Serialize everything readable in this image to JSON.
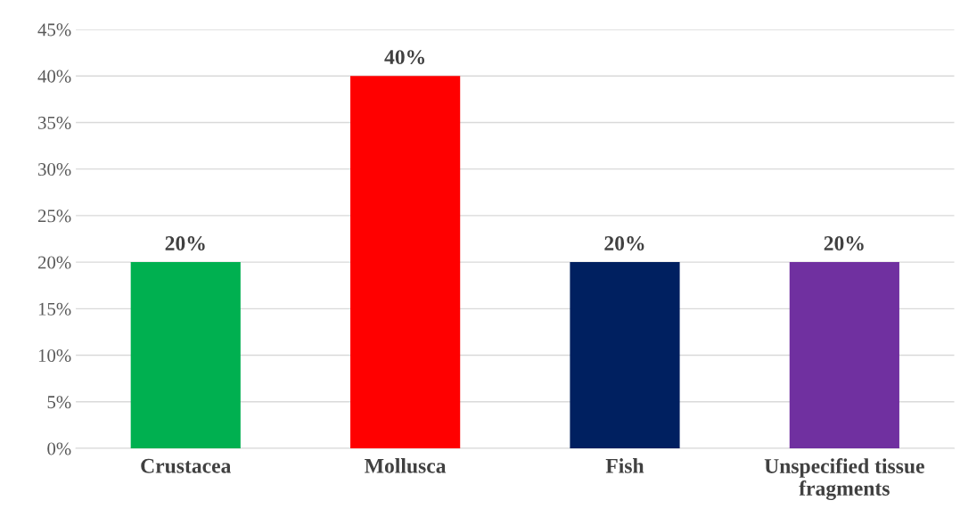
{
  "chart_data": {
    "type": "bar",
    "categories": [
      "Crustacea",
      "Mollusca",
      "Fish",
      "Unspecified tissue\nfragments"
    ],
    "values": [
      20,
      40,
      20,
      20
    ],
    "colors": [
      "#00b050",
      "#ff0000",
      "#002060",
      "#7030a0"
    ],
    "value_labels": [
      "20%",
      "40%",
      "20%",
      "20%"
    ],
    "ylim": [
      0,
      45
    ],
    "yticks": [
      {
        "value": 0,
        "label": "0%"
      },
      {
        "value": 5,
        "label": "5%"
      },
      {
        "value": 10,
        "label": "10%"
      },
      {
        "value": 15,
        "label": "15%"
      },
      {
        "value": 20,
        "label": "20%"
      },
      {
        "value": 25,
        "label": "25%"
      },
      {
        "value": 30,
        "label": "30%"
      },
      {
        "value": 35,
        "label": "35%"
      },
      {
        "value": 40,
        "label": "40%"
      },
      {
        "value": 45,
        "label": "45%"
      }
    ],
    "grid": "y",
    "legend": false
  }
}
